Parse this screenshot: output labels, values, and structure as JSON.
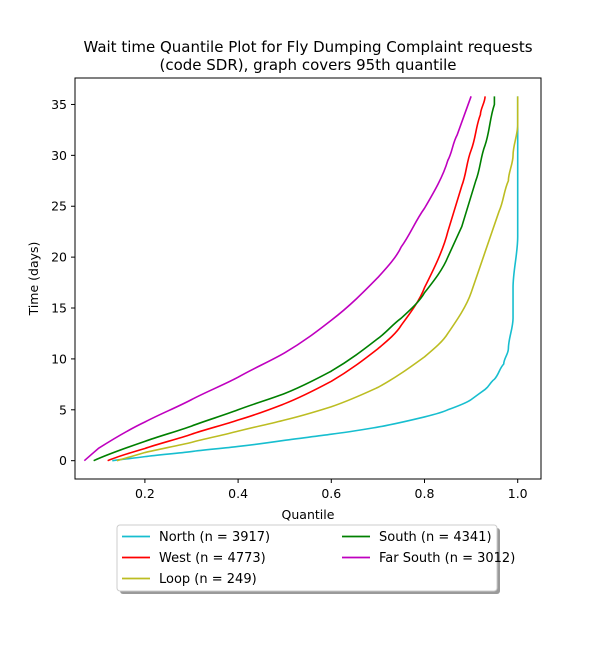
{
  "chart_data": {
    "type": "line",
    "title_lines": [
      "Wait time Quantile Plot for Fly Dumping Complaint  requests",
      "(code SDR), graph covers 95th quantile"
    ],
    "xlabel": "Quantile",
    "ylabel": "Time (days)",
    "xlim": [
      0.05,
      1.05
    ],
    "ylim": [
      -1.8,
      37.6
    ],
    "xticks": [
      0.2,
      0.4,
      0.6,
      0.8,
      1.0
    ],
    "xtick_labels": [
      "0.2",
      "0.4",
      "0.6",
      "0.8",
      "1.0"
    ],
    "yticks": [
      0,
      5,
      10,
      15,
      20,
      25,
      30,
      35
    ],
    "ytick_labels": [
      "0",
      "5",
      "10",
      "15",
      "20",
      "25",
      "30",
      "35"
    ],
    "grid": false,
    "legend_position": "below plot, two columns",
    "series": [
      {
        "name": "North (n = 3917)",
        "color": "#17becf",
        "x": [
          0.13,
          0.2,
          0.3,
          0.4,
          0.5,
          0.6,
          0.7,
          0.8,
          0.85,
          0.9,
          0.93,
          0.95,
          0.97,
          0.98,
          0.99,
          0.993,
          0.996,
          0.998,
          1.0
        ],
        "y": [
          0,
          0.4,
          0.9,
          1.4,
          2.0,
          2.6,
          3.3,
          4.3,
          5.0,
          6.0,
          7.0,
          8.0,
          9.5,
          11,
          14,
          17,
          22,
          28,
          35.8
        ]
      },
      {
        "name": "West (n = 4773)",
        "color": "#ff0000",
        "x": [
          0.115,
          0.2,
          0.3,
          0.4,
          0.5,
          0.6,
          0.7,
          0.75,
          0.8,
          0.85,
          0.88,
          0.9,
          0.92,
          0.93
        ],
        "y": [
          0,
          1.2,
          2.6,
          4.0,
          5.6,
          7.8,
          11.0,
          13.3,
          17.0,
          22.5,
          27.0,
          30.5,
          34.0,
          35.8
        ]
      },
      {
        "name": "Loop (n = 249)",
        "color": "#bcbd22",
        "x": [
          0.135,
          0.2,
          0.3,
          0.4,
          0.5,
          0.6,
          0.7,
          0.8,
          0.85,
          0.9,
          0.93,
          0.96,
          0.98,
          0.99,
          0.997,
          1.0
        ],
        "y": [
          0,
          0.8,
          1.8,
          2.9,
          4.0,
          5.3,
          7.2,
          10.2,
          12.5,
          16.5,
          20.5,
          24.5,
          27.5,
          30,
          33,
          35.8
        ]
      },
      {
        "name": "South (n = 4341)",
        "color": "#008000",
        "x": [
          0.085,
          0.2,
          0.3,
          0.4,
          0.5,
          0.6,
          0.7,
          0.75,
          0.8,
          0.85,
          0.88,
          0.91,
          0.93,
          0.95,
          0.955
        ],
        "y": [
          0,
          1.9,
          3.4,
          5.0,
          6.6,
          8.8,
          12.0,
          14.0,
          16.5,
          20.0,
          23.0,
          27.5,
          31.0,
          35.0,
          35.8
        ]
      },
      {
        "name": "Far South (n = 3012)",
        "color": "#bf00bf",
        "x": [
          0.072,
          0.1,
          0.2,
          0.3,
          0.4,
          0.5,
          0.6,
          0.7,
          0.75,
          0.8,
          0.85,
          0.87,
          0.9
        ],
        "y": [
          0,
          1.2,
          3.8,
          6.0,
          8.2,
          10.6,
          13.8,
          18.0,
          21.0,
          24.8,
          29.5,
          32.0,
          35.8
        ]
      }
    ]
  }
}
